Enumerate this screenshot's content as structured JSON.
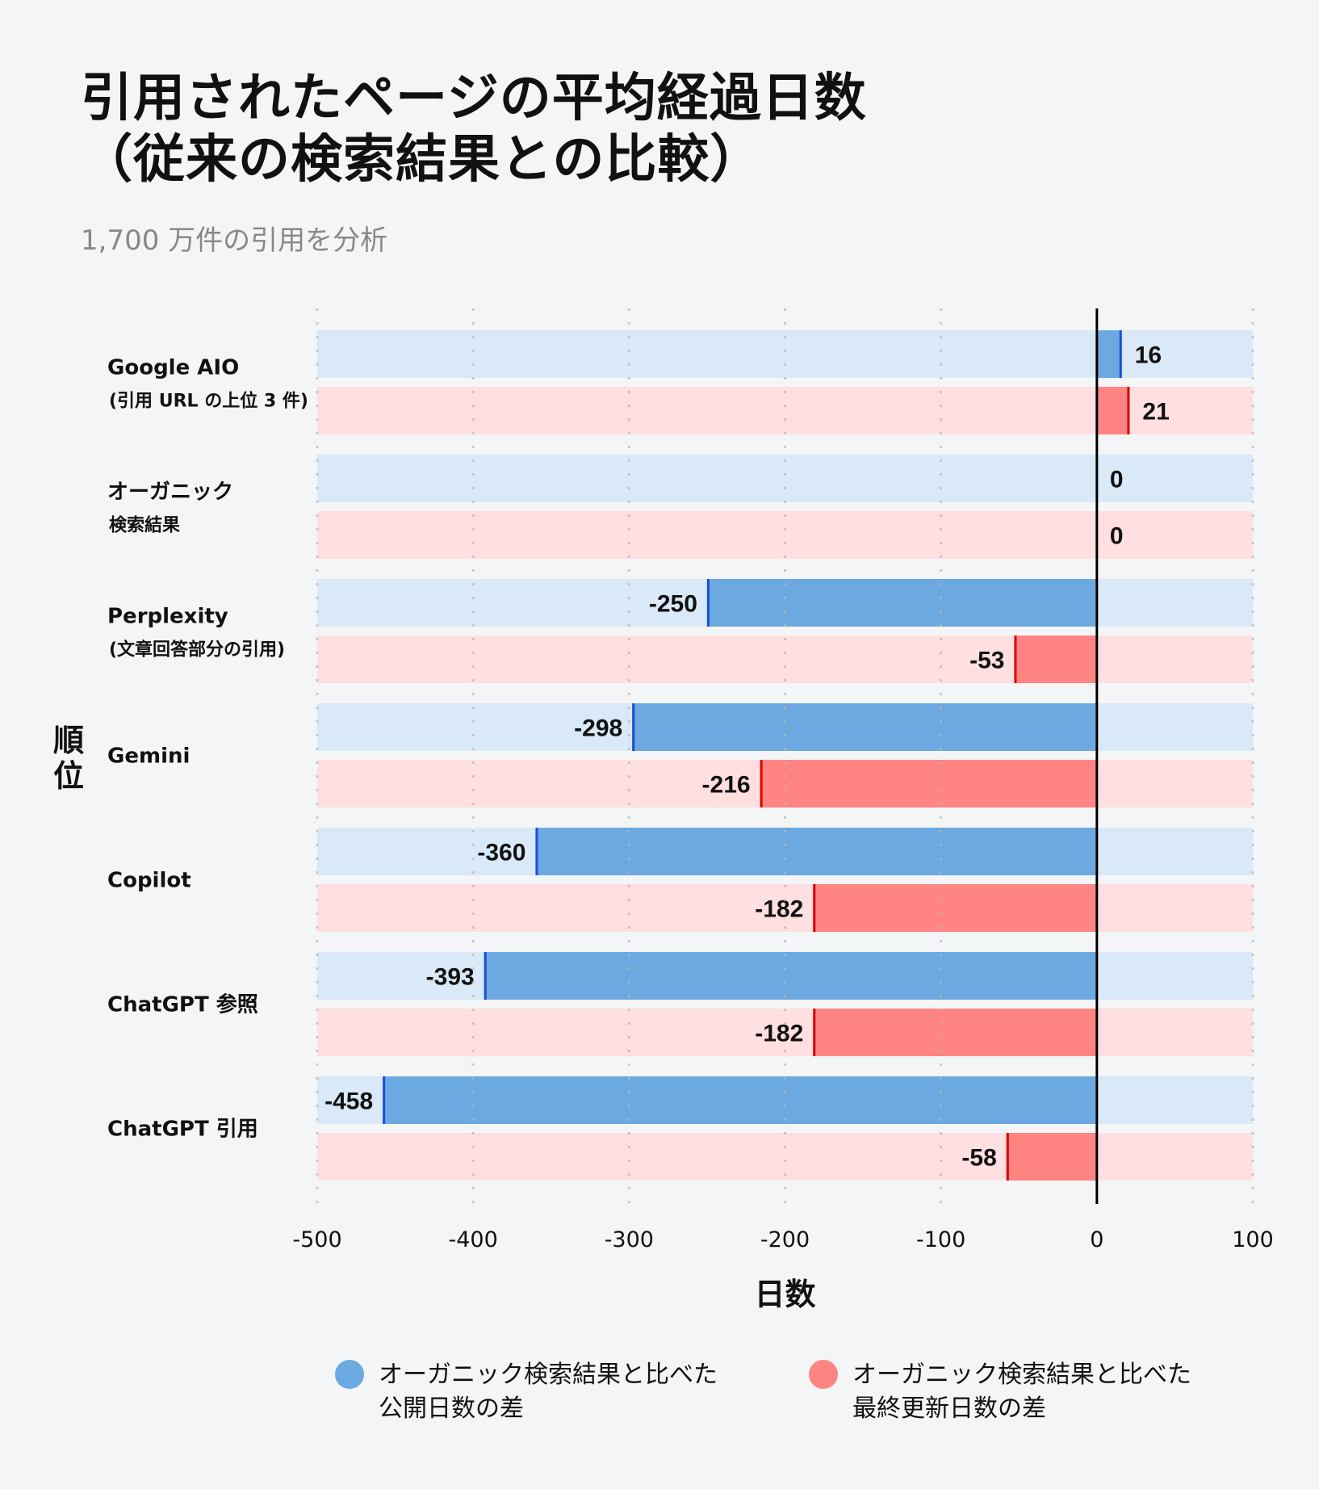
{
  "title_line1": "引用されたページの平均経過日数",
  "title_line2": "（従来の検索結果との比較）",
  "subtitle": "1,700 万件の引用を分析",
  "chart_data": {
    "type": "bar",
    "orientation": "horizontal",
    "xlabel": "日数",
    "ylabel": "順位",
    "xlim": [
      -500,
      100
    ],
    "xticks": [
      -500,
      -400,
      -300,
      -200,
      -100,
      0,
      100
    ],
    "grid": true,
    "legend_position": "bottom",
    "categories": [
      {
        "label": "Google AIO",
        "sub": "(引用 URL の上位 3 件)"
      },
      {
        "label": "オーガニック",
        "sub": "検索結果"
      },
      {
        "label": "Perplexity",
        "sub": "(文章回答部分の引用)"
      },
      {
        "label": "Gemini",
        "sub": ""
      },
      {
        "label": "Copilot",
        "sub": ""
      },
      {
        "label": "ChatGPT 参照",
        "sub": ""
      },
      {
        "label": "ChatGPT 引用",
        "sub": ""
      }
    ],
    "series": [
      {
        "name": "オーガニック検索結果と比べた\n公開日数の差",
        "color": "#6ca9e0",
        "edge": "#1a4fd6",
        "track": "#d9e9f8",
        "values": [
          16,
          0,
          -250,
          -298,
          -360,
          -393,
          -458
        ]
      },
      {
        "name": "オーガニック検索結果と比べた\n最終更新日数の差",
        "color": "#ff8482",
        "edge": "#d90000",
        "track": "#ffdfe0",
        "values": [
          21,
          0,
          -53,
          -216,
          -182,
          -182,
          -58
        ]
      }
    ]
  }
}
